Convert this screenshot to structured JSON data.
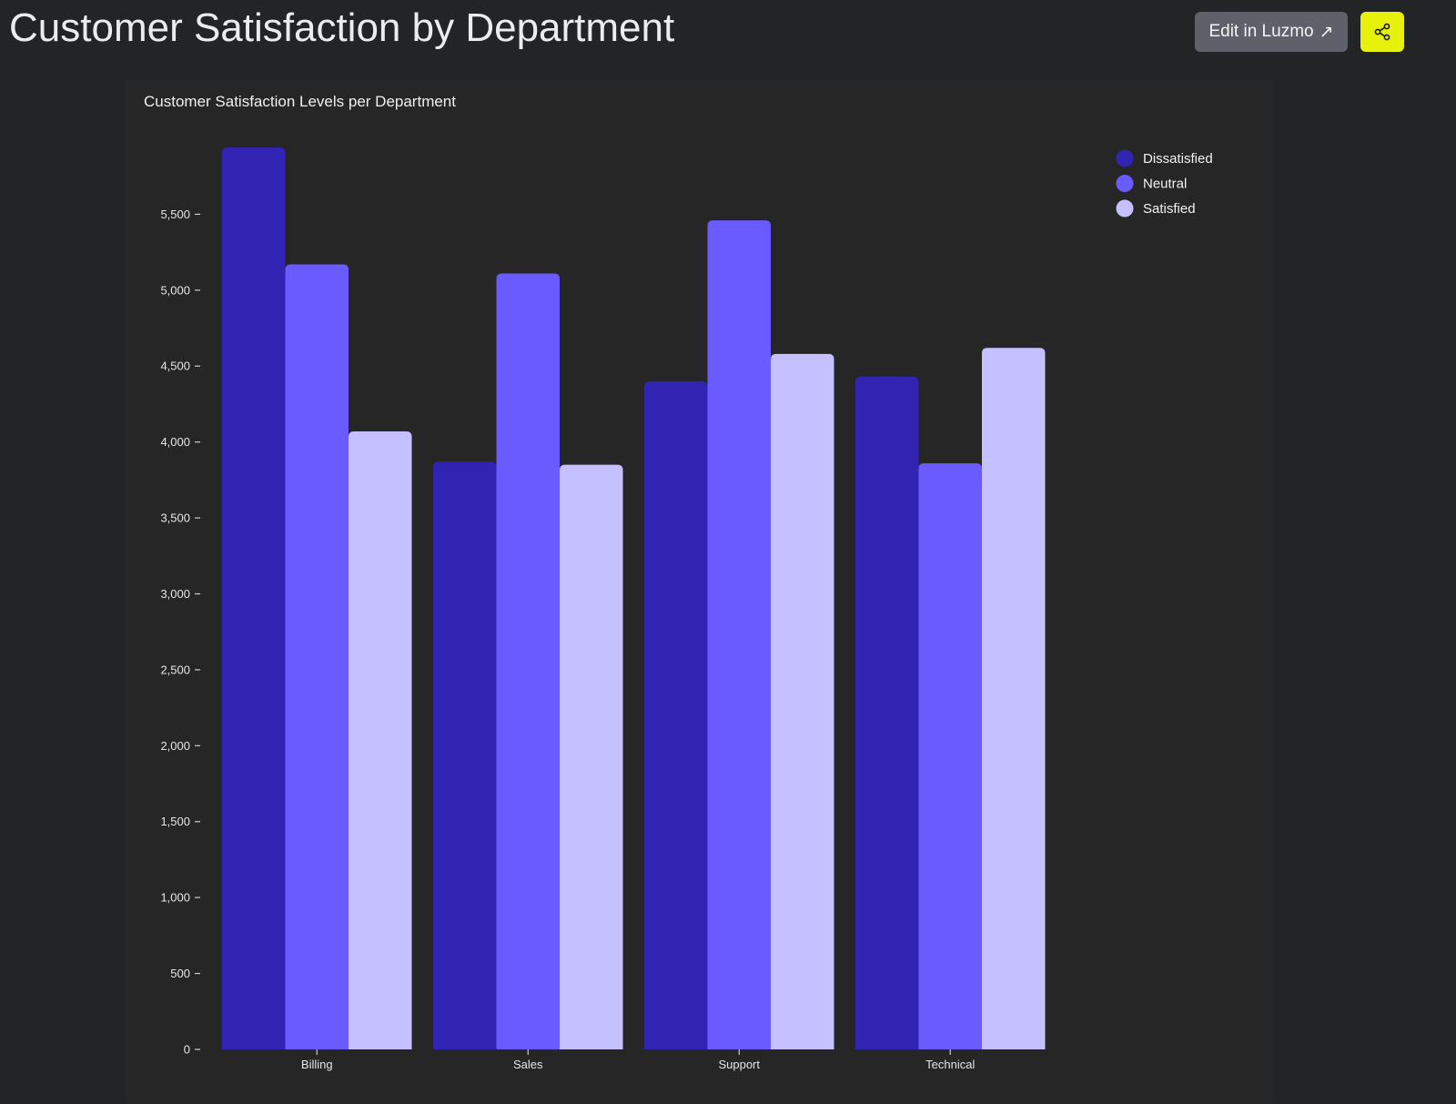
{
  "header": {
    "title": "Customer Satisfaction by Department",
    "edit_label": "Edit in Luzmo",
    "edit_icon": "arrow-up-right-icon",
    "share_icon": "share-icon",
    "share_color": "#e6f20b"
  },
  "chart_data": {
    "type": "bar",
    "title": "Customer Satisfaction Levels per Department",
    "xlabel": "",
    "ylabel": "",
    "categories": [
      "Billing",
      "Sales",
      "Support",
      "Technical"
    ],
    "series": [
      {
        "name": "Dissatisfied",
        "color": "#3124b3",
        "values": [
          5940,
          3870,
          4400,
          4430
        ]
      },
      {
        "name": "Neutral",
        "color": "#6a5bff",
        "values": [
          5170,
          5110,
          5460,
          3860
        ]
      },
      {
        "name": "Satisfied",
        "color": "#c5c0ff",
        "values": [
          4070,
          3850,
          4580,
          4620
        ]
      }
    ],
    "ylim": [
      0,
      5940
    ],
    "y_ticks": [
      0,
      500,
      1000,
      1500,
      2000,
      2500,
      3000,
      3500,
      4000,
      4500,
      5000,
      5500
    ],
    "y_tick_labels": [
      "0",
      "500",
      "1,000",
      "1,500",
      "2,000",
      "2,500",
      "3,000",
      "3,500",
      "4,000",
      "4,500",
      "5,000",
      "5,500"
    ],
    "grid": false,
    "legend_position": "top-right"
  }
}
